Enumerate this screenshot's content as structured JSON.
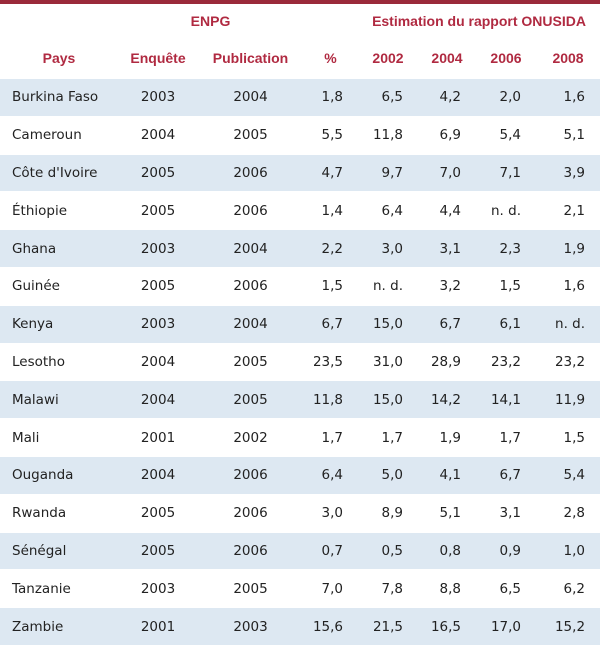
{
  "header": {
    "group_enpg": "ENPG",
    "group_onusida": "Estimation du rapport ONUSIDA",
    "columns": [
      "Pays",
      "Enquête",
      "Publication",
      "%",
      "2002",
      "2004",
      "2006",
      "2008"
    ]
  },
  "rows": [
    [
      "Burkina Faso",
      "2003",
      "2004",
      "1,8",
      "6,5",
      "4,2",
      "2,0",
      "1,6"
    ],
    [
      "Cameroun",
      "2004",
      "2005",
      "5,5",
      "11,8",
      "6,9",
      "5,4",
      "5,1"
    ],
    [
      "Côte d'Ivoire",
      "2005",
      "2006",
      "4,7",
      "9,7",
      "7,0",
      "7,1",
      "3,9"
    ],
    [
      "Éthiopie",
      "2005",
      "2006",
      "1,4",
      "6,4",
      "4,4",
      "n. d.",
      "2,1"
    ],
    [
      "Ghana",
      "2003",
      "2004",
      "2,2",
      "3,0",
      "3,1",
      "2,3",
      "1,9"
    ],
    [
      "Guinée",
      "2005",
      "2006",
      "1,5",
      "n. d.",
      "3,2",
      "1,5",
      "1,6"
    ],
    [
      "Kenya",
      "2003",
      "2004",
      "6,7",
      "15,0",
      "6,7",
      "6,1",
      "n. d."
    ],
    [
      "Lesotho",
      "2004",
      "2005",
      "23,5",
      "31,0",
      "28,9",
      "23,2",
      "23,2"
    ],
    [
      "Malawi",
      "2004",
      "2005",
      "11,8",
      "15,0",
      "14,2",
      "14,1",
      "11,9"
    ],
    [
      "Mali",
      "2001",
      "2002",
      "1,7",
      "1,7",
      "1,9",
      "1,7",
      "1,5"
    ],
    [
      "Ouganda",
      "2004",
      "2006",
      "6,4",
      "5,0",
      "4,1",
      "6,7",
      "5,4"
    ],
    [
      "Rwanda",
      "2005",
      "2006",
      "3,0",
      "8,9",
      "5,1",
      "3,1",
      "2,8"
    ],
    [
      "Sénégal",
      "2005",
      "2006",
      "0,7",
      "0,5",
      "0,8",
      "0,9",
      "1,0"
    ],
    [
      "Tanzanie",
      "2003",
      "2005",
      "7,0",
      "7,8",
      "8,8",
      "6,5",
      "6,2"
    ],
    [
      "Zambie",
      "2001",
      "2003",
      "15,6",
      "21,5",
      "16,5",
      "17,0",
      "15,2"
    ]
  ]
}
